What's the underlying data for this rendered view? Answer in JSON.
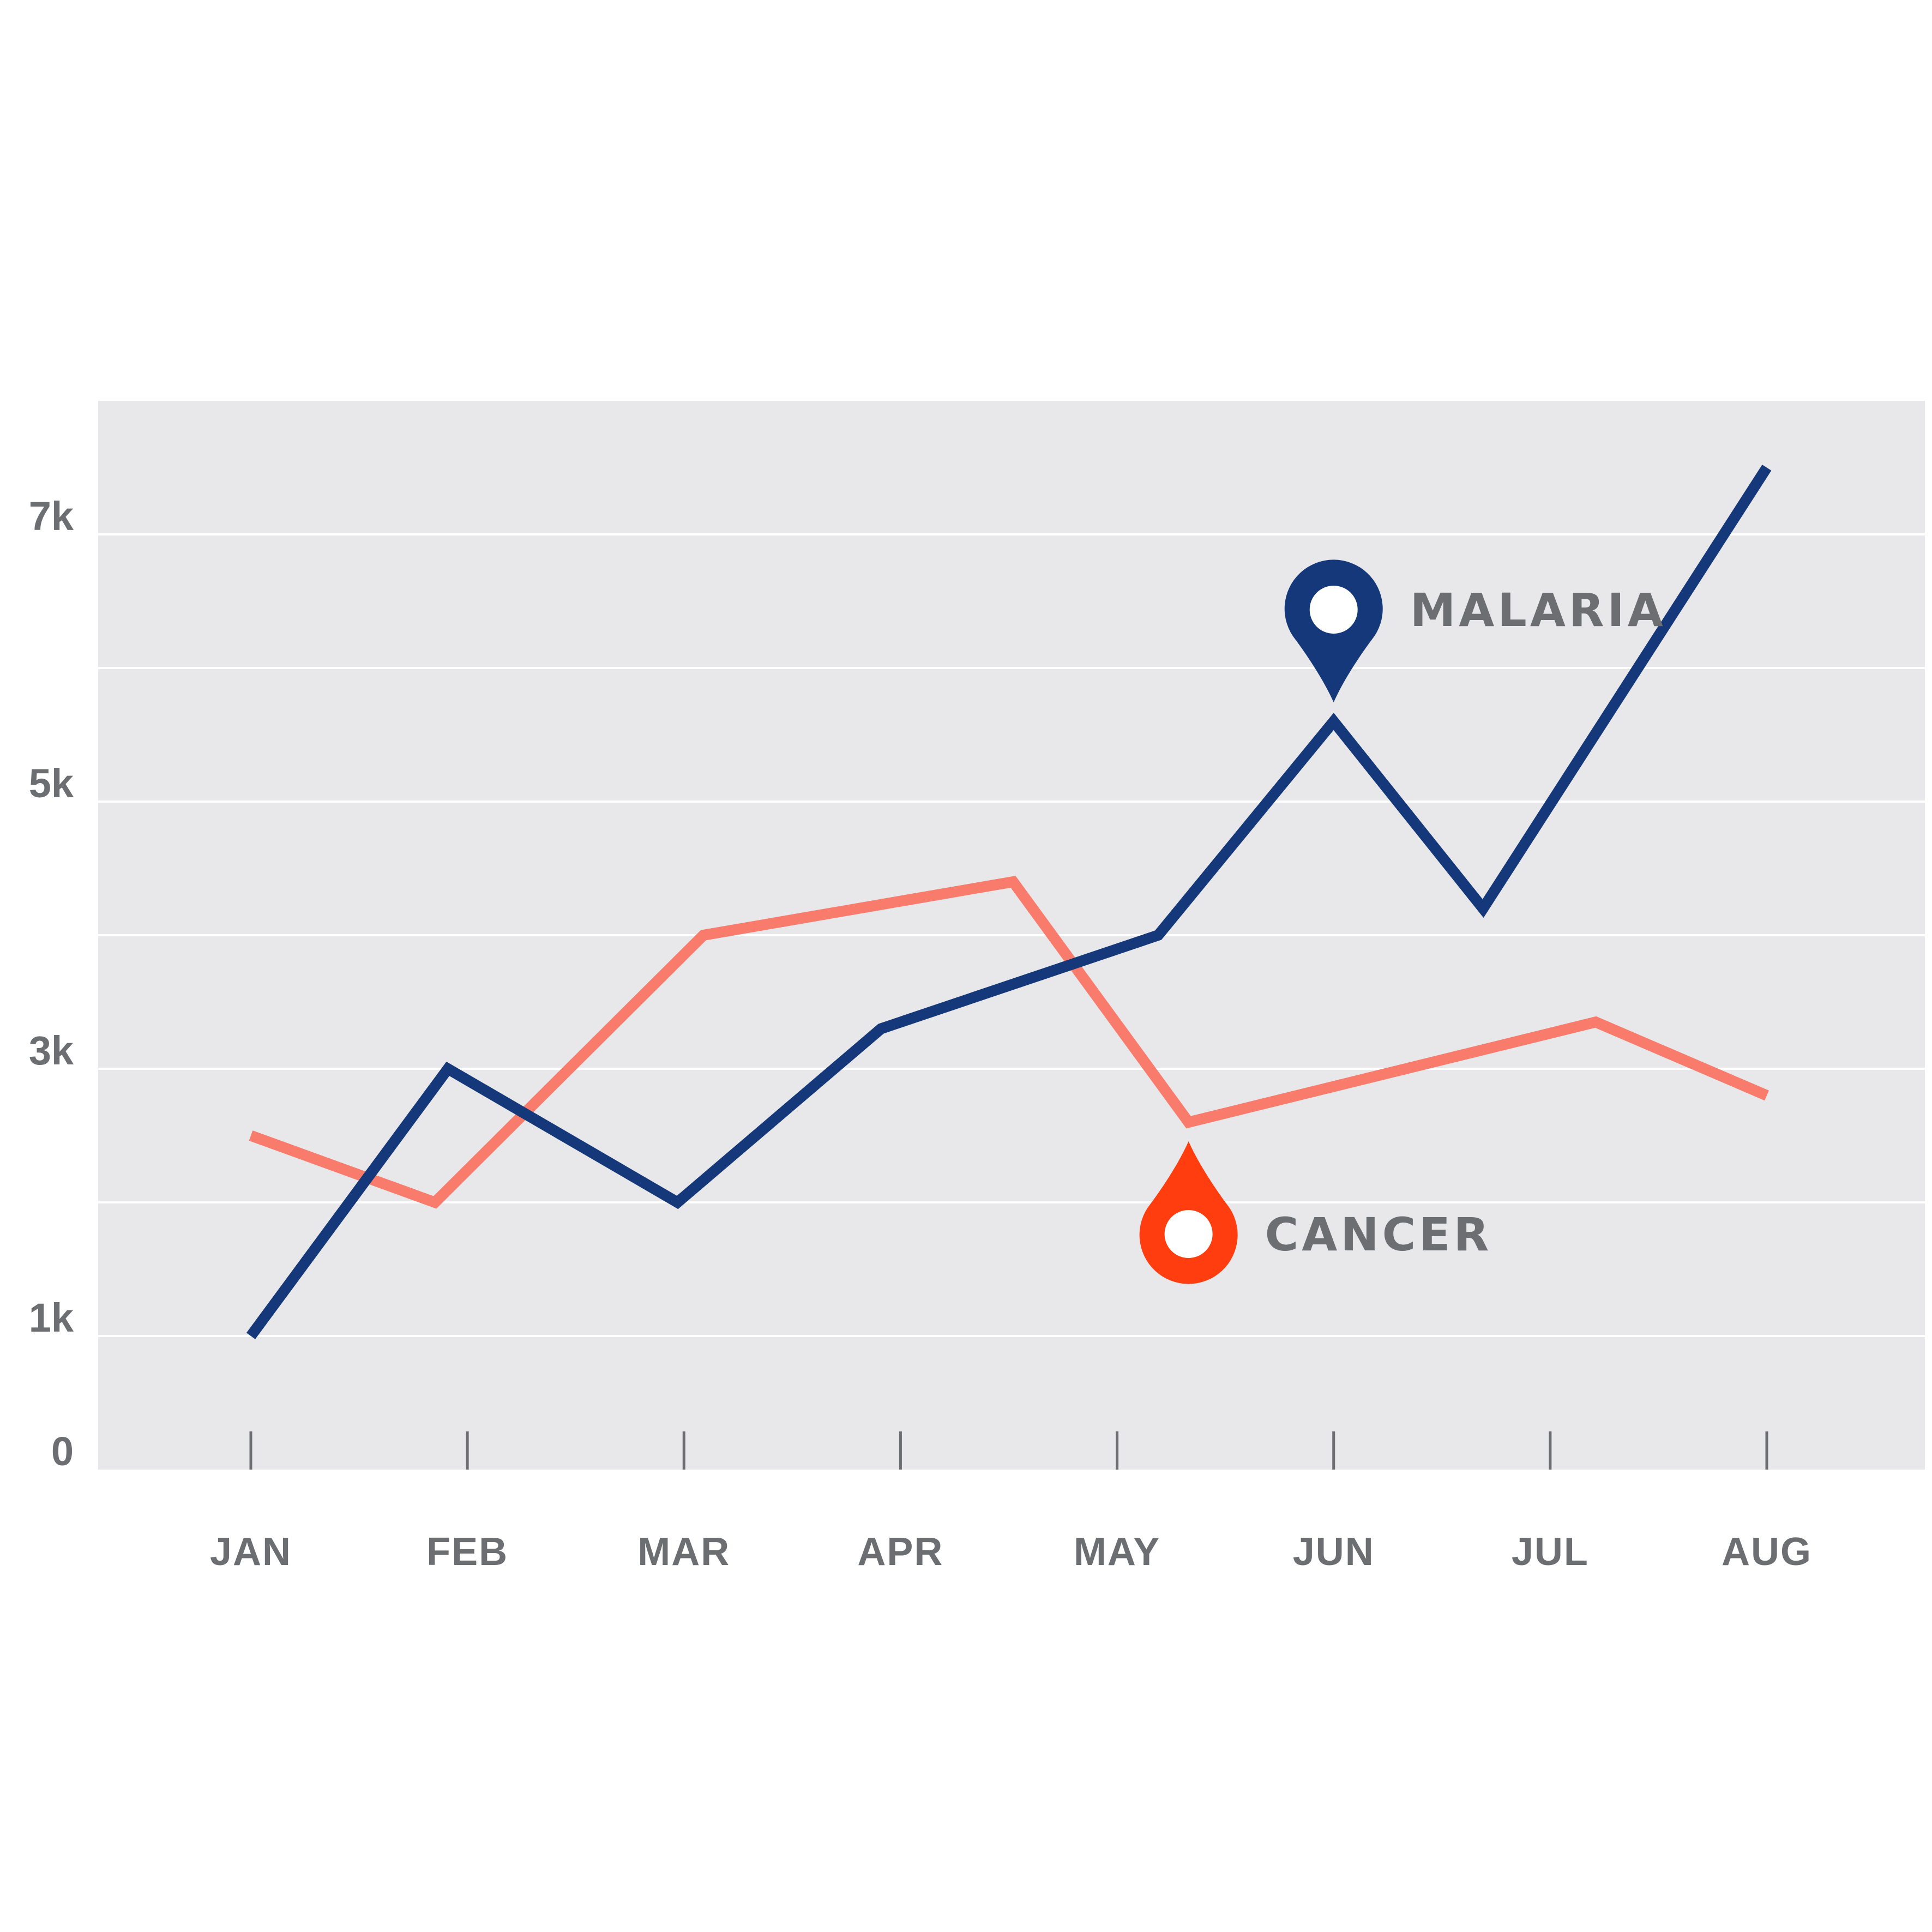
{
  "chart_data": {
    "type": "line",
    "title": "",
    "xlabel": "",
    "ylabel": "",
    "categories": [
      "JAN",
      "FEB",
      "MAR",
      "APR",
      "MAY",
      "JUN",
      "JUL",
      "AUG"
    ],
    "y_ticks": [
      {
        "value": 0,
        "label": "0"
      },
      {
        "value": 1000,
        "label": "1k"
      },
      {
        "value": 3000,
        "label": "3k"
      },
      {
        "value": 5000,
        "label": "5k"
      },
      {
        "value": 7000,
        "label": "7k"
      }
    ],
    "ylim": [
      0,
      8000
    ],
    "gridlines_every": 1000,
    "grid": true,
    "plot_background": "#e8e8ea",
    "series": [
      {
        "name": "CANCER",
        "color": "#f87b6c",
        "marker_color": "#ff3d0f",
        "marker_icon": "map-pin-icon",
        "marker_at_x": 4.33,
        "marker_direction": "up",
        "points": [
          {
            "x": 0,
            "y": 2500
          },
          {
            "x": 0.85,
            "y": 2000
          },
          {
            "x": 2.09,
            "y": 4000
          },
          {
            "x": 3.52,
            "y": 4400
          },
          {
            "x": 4.33,
            "y": 2600
          },
          {
            "x": 6.21,
            "y": 3350
          },
          {
            "x": 7,
            "y": 2800
          }
        ]
      },
      {
        "name": "MALARIA",
        "color": "#14387a",
        "marker_color": "#14387a",
        "marker_icon": "map-pin-icon",
        "marker_at_x": 5,
        "marker_direction": "down",
        "points": [
          {
            "x": 0,
            "y": 1000
          },
          {
            "x": 0.91,
            "y": 3000
          },
          {
            "x": 1.97,
            "y": 2000
          },
          {
            "x": 2.91,
            "y": 3300
          },
          {
            "x": 4.19,
            "y": 4000
          },
          {
            "x": 5,
            "y": 5600
          },
          {
            "x": 5.69,
            "y": 4200
          },
          {
            "x": 7,
            "y": 7500
          }
        ]
      }
    ],
    "legend": "inline-labels-with-pin-markers"
  }
}
